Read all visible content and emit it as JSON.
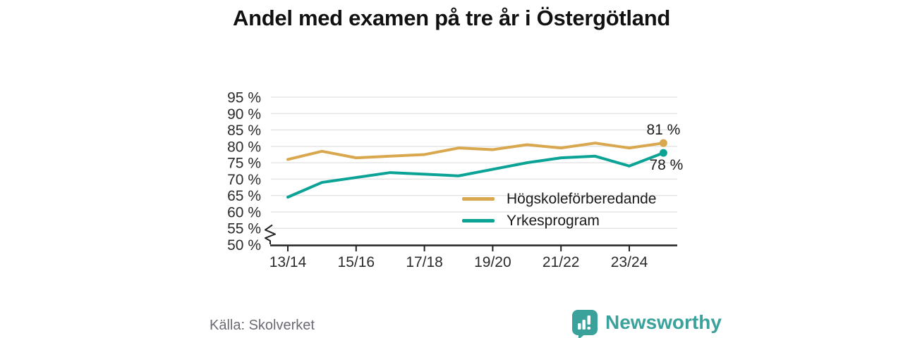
{
  "title": "Andel med examen på tre år i Östergötland",
  "source": "Källa: Skolverket",
  "branding": {
    "name": "Newsworthy"
  },
  "colors": {
    "grid": "#e5e5e5",
    "axis": "#222222",
    "tick_text": "#2b2b2b",
    "annotation_text": "#1a1a1a",
    "brand_teal": "#3aa29b"
  },
  "chart_data": {
    "type": "line",
    "title": "Andel med examen på tre år i Östergötland",
    "x_categories": [
      "13/14",
      "14/15",
      "15/16",
      "16/17",
      "17/18",
      "18/19",
      "19/20",
      "20/21",
      "21/22",
      "22/23",
      "23/24",
      "24/25"
    ],
    "xticks": [
      {
        "i": 0,
        "label": "13/14"
      },
      {
        "i": 2,
        "label": "15/16"
      },
      {
        "i": 4,
        "label": "17/18"
      },
      {
        "i": 6,
        "label": "19/20"
      },
      {
        "i": 8,
        "label": "21/22"
      },
      {
        "i": 10,
        "label": "23/24"
      }
    ],
    "yticks": [
      {
        "v": 95,
        "label": "95 %"
      },
      {
        "v": 90,
        "label": "90 %"
      },
      {
        "v": 85,
        "label": "85 %"
      },
      {
        "v": 80,
        "label": "80 %"
      },
      {
        "v": 75,
        "label": "75 %"
      },
      {
        "v": 70,
        "label": "70 %"
      },
      {
        "v": 65,
        "label": "65 %"
      },
      {
        "v": 60,
        "label": "60 %"
      },
      {
        "v": 55,
        "label": "55 %"
      },
      {
        "v": 50,
        "label": "50 %"
      }
    ],
    "ylim": [
      50,
      95
    ],
    "axis_break": true,
    "grid": "horizontal",
    "legend_position": "inside-right",
    "series": [
      {
        "name": "Högskoleförberedande",
        "color": "#d9a84e",
        "values": [
          76,
          78.5,
          76.5,
          77,
          77.5,
          79.5,
          79,
          80.5,
          79.5,
          81,
          79.5,
          81
        ],
        "end_label": "81 %"
      },
      {
        "name": "Yrkesprogram",
        "color": "#0aa396",
        "values": [
          64.5,
          69,
          70.5,
          72,
          71.5,
          71,
          73,
          75,
          76.5,
          77,
          74,
          78
        ],
        "end_label": "78 %"
      }
    ]
  }
}
